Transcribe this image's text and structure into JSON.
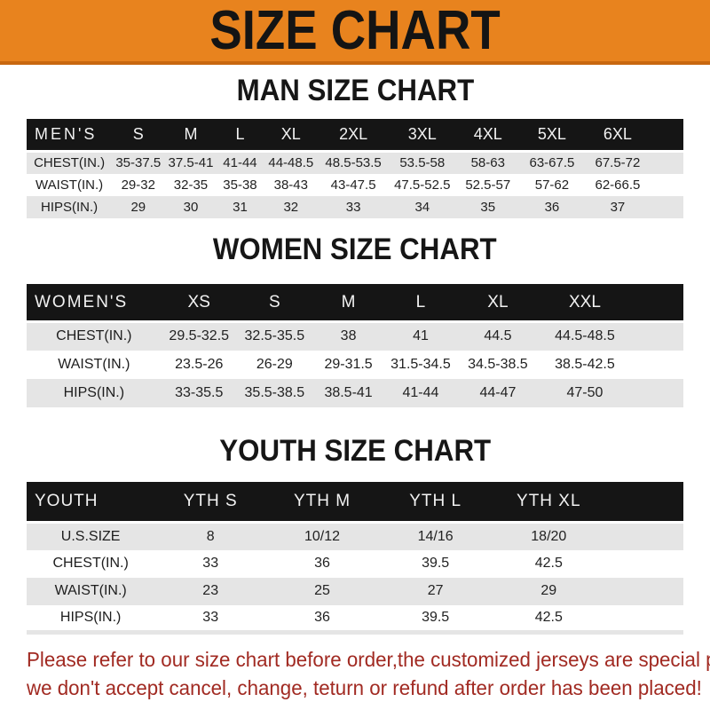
{
  "banner": {
    "title": "SIZE CHART"
  },
  "colors": {
    "banner_bg": "#E8831E",
    "banner_border": "#C8680F",
    "table_header_bg": "#151515",
    "row_stripe_bg": "#E5E5E5",
    "footer_text": "#A12A22"
  },
  "chart_data": [
    {
      "type": "table",
      "title": "MAN SIZE CHART",
      "corner_label": "MEN'S",
      "columns": [
        "S",
        "M",
        "L",
        "XL",
        "2XL",
        "3XL",
        "4XL",
        "5XL",
        "6XL"
      ],
      "rows": [
        {
          "label": "CHEST(IN.)",
          "values": [
            "35-37.5",
            "37.5-41",
            "41-44",
            "44-48.5",
            "48.5-53.5",
            "53.5-58",
            "58-63",
            "63-67.5",
            "67.5-72"
          ]
        },
        {
          "label": "WAIST(IN.)",
          "values": [
            "29-32",
            "32-35",
            "35-38",
            "38-43",
            "43-47.5",
            "47.5-52.5",
            "52.5-57",
            "57-62",
            "62-66.5"
          ]
        },
        {
          "label": "HIPS(IN.)",
          "values": [
            "29",
            "30",
            "31",
            "32",
            "33",
            "34",
            "35",
            "36",
            "37"
          ]
        }
      ]
    },
    {
      "type": "table",
      "title": "WOMEN SIZE CHART",
      "corner_label": "WOMEN'S",
      "columns": [
        "XS",
        "S",
        "M",
        "L",
        "XL",
        "XXL"
      ],
      "rows": [
        {
          "label": "CHEST(IN.)",
          "values": [
            "29.5-32.5",
            "32.5-35.5",
            "38",
            "41",
            "44.5",
            "44.5-48.5"
          ]
        },
        {
          "label": "WAIST(IN.)",
          "values": [
            "23.5-26",
            "26-29",
            "29-31.5",
            "31.5-34.5",
            "34.5-38.5",
            "38.5-42.5"
          ]
        },
        {
          "label": "HIPS(IN.)",
          "values": [
            "33-35.5",
            "35.5-38.5",
            "38.5-41",
            "41-44",
            "44-47",
            "47-50"
          ]
        }
      ]
    },
    {
      "type": "table",
      "title": "YOUTH SIZE CHART",
      "corner_label": "YOUTH",
      "columns": [
        "YTH S",
        "YTH M",
        "YTH L",
        "YTH XL"
      ],
      "rows": [
        {
          "label": "U.S.SIZE",
          "values": [
            "8",
            "10/12",
            "14/16",
            "18/20"
          ]
        },
        {
          "label": "CHEST(IN.)",
          "values": [
            "33",
            "36",
            "39.5",
            "42.5"
          ]
        },
        {
          "label": "WAIST(IN.)",
          "values": [
            "23",
            "25",
            "27",
            "29"
          ]
        },
        {
          "label": "HIPS(IN.)",
          "values": [
            "33",
            "36",
            "39.5",
            "42.5"
          ]
        }
      ]
    }
  ],
  "footer": {
    "line1": "Please refer to our size chart before order,the customized jerseys are special products,",
    "line2": "we don't accept cancel, change, teturn or refund after order has been placed!"
  }
}
